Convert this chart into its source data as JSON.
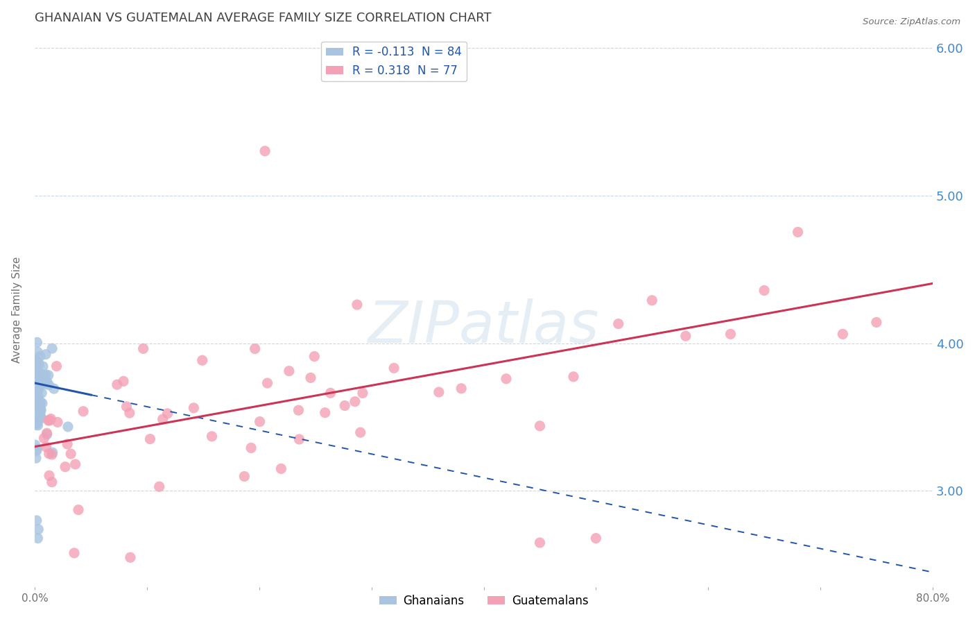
{
  "title": "GHANAIAN VS GUATEMALAN AVERAGE FAMILY SIZE CORRELATION CHART",
  "source": "Source: ZipAtlas.com",
  "ylabel": "Average Family Size",
  "xlim": [
    0.0,
    80.0
  ],
  "ylim": [
    2.35,
    6.1
  ],
  "yticks": [
    3.0,
    4.0,
    5.0,
    6.0
  ],
  "xticks": [
    0.0,
    10.0,
    20.0,
    30.0,
    40.0,
    50.0,
    60.0,
    70.0,
    80.0
  ],
  "blue_r": -0.113,
  "blue_n": 84,
  "pink_r": 0.318,
  "pink_n": 77,
  "blue_color": "#a8c4e0",
  "pink_color": "#f4a0b5",
  "blue_line_color": "#2255aa",
  "pink_line_color": "#cc3355",
  "watermark": "ZIPatlas",
  "legend_label_blue": "Ghanaians",
  "legend_label_pink": "Guatemalans",
  "bg_color": "#ffffff",
  "grid_color": "#c8d8e8",
  "title_color": "#404040",
  "axis_label_color": "#707070",
  "right_axis_color": "#4488cc",
  "blue_trend_intercept": 3.73,
  "blue_trend_slope": -0.016,
  "blue_solid_end": 5.0,
  "pink_trend_intercept": 3.3,
  "pink_trend_slope": 0.0138
}
